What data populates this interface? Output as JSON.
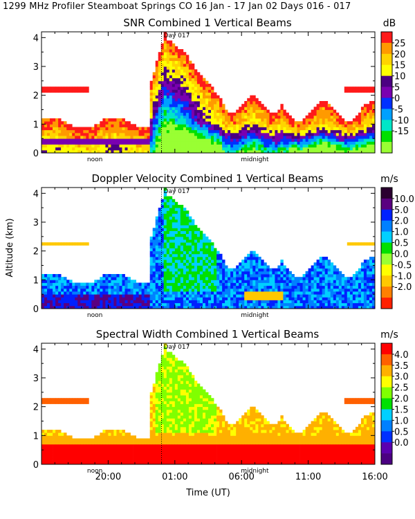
{
  "page_title": "1299 MHz Profiler  Steamboat Springs CO  16 Jan - 17 Jan 02 Days 016 - 017",
  "y_axis_label": "Altitude (km)",
  "x_axis_label": "Time (UT)",
  "chart_data": [
    {
      "type": "heatmap",
      "title": "SNR Combined 1 Vertical Beams",
      "unit": "dB",
      "ylabel": "Altitude (km)",
      "xlabel": "Time (UT)",
      "y_ticks": [
        "0",
        "1",
        "2",
        "3",
        "4"
      ],
      "ylim": [
        0,
        4.2
      ],
      "day_marker": "Day 017",
      "day_marker_hour": 0,
      "under_axis_labels": [
        {
          "text": "noon",
          "hour": -5
        },
        {
          "text": "midnight",
          "hour": 7
        }
      ],
      "colorbar": {
        "labels": [
          "25",
          "20",
          "15",
          "10",
          "5",
          "0",
          "-5",
          "-10",
          "-15"
        ],
        "colors": [
          "#ff1a1a",
          "#ff9a00",
          "#ffd400",
          "#ffff00",
          "#4b0082",
          "#7a00b0",
          "#0030ff",
          "#00a0ff",
          "#00e6c8",
          "#00e000",
          "#99ff33"
        ]
      }
    },
    {
      "type": "heatmap",
      "title": "Doppler Velocity Combined 1 Vertical Beams",
      "unit": "m/s",
      "ylabel": "Altitude (km)",
      "xlabel": "Time (UT)",
      "y_ticks": [
        "0",
        "1",
        "2",
        "3",
        "4"
      ],
      "ylim": [
        0,
        4.2
      ],
      "day_marker": "Day 017",
      "day_marker_hour": 0,
      "under_axis_labels": [
        {
          "text": "noon",
          "hour": -5
        },
        {
          "text": "midnight",
          "hour": 7
        }
      ],
      "colorbar": {
        "labels": [
          "10.0",
          "5.0",
          "2.0",
          "1.0",
          "0.5",
          "0.0",
          "-0.5",
          "-1.0",
          "-2.0"
        ],
        "colors": [
          "#2a0030",
          "#5a0080",
          "#0020ff",
          "#0080ff",
          "#00d0ff",
          "#00e000",
          "#9aff33",
          "#ffff00",
          "#ffc800",
          "#ff8000",
          "#ff2000"
        ]
      }
    },
    {
      "type": "heatmap",
      "title": "Spectral Width Combined 1 Vertical Beams",
      "unit": "m/s",
      "ylabel": "Altitude (km)",
      "xlabel": "Time (UT)",
      "y_ticks": [
        "0",
        "1",
        "2",
        "3",
        "4"
      ],
      "ylim": [
        0,
        4.2
      ],
      "day_marker": "Day 017",
      "day_marker_hour": 0,
      "under_axis_labels": [
        {
          "text": "noon",
          "hour": -5
        },
        {
          "text": "midnight",
          "hour": 7
        }
      ],
      "x_tick_labels": [
        "20:00",
        "01:00",
        "06:00",
        "11:00",
        "16:00"
      ],
      "x_tick_hours": [
        -4,
        1,
        6,
        11,
        16
      ],
      "xlim": [
        -9,
        16
      ],
      "colorbar": {
        "labels": [
          "4.0",
          "3.5",
          "3.0",
          "2.5",
          "2.0",
          "1.5",
          "1.0",
          "0.5",
          "0.0"
        ],
        "colors": [
          "#ff0000",
          "#ff6000",
          "#ffb000",
          "#ffff00",
          "#80ff00",
          "#00e000",
          "#00d0ff",
          "#0080ff",
          "#0030ff",
          "#5a00b0",
          "#4b0082"
        ]
      }
    }
  ]
}
